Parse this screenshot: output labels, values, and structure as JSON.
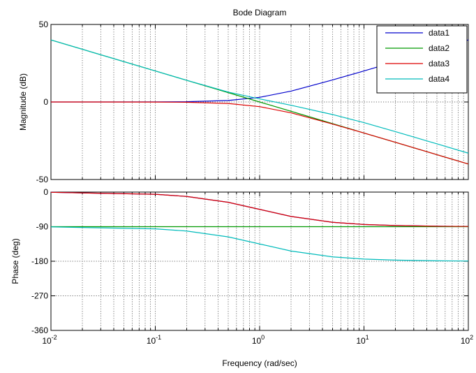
{
  "chart_data": {
    "type": "line",
    "title": "Bode Diagram",
    "xlabel": "Frequency  (rad/sec)",
    "x_scale": "log",
    "xlim": [
      0.01,
      100
    ],
    "x_ticks": [
      {
        "value": 0.01,
        "base": "10",
        "exp": "-2"
      },
      {
        "value": 0.1,
        "base": "10",
        "exp": "-1"
      },
      {
        "value": 1,
        "base": "10",
        "exp": "0"
      },
      {
        "value": 10,
        "base": "10",
        "exp": "1"
      },
      {
        "value": 100,
        "base": "10",
        "exp": "2"
      }
    ],
    "grid": true,
    "legend_position": "top-right",
    "colors": {
      "data1": "#0000cc",
      "data2": "#009900",
      "data3": "#dd0000",
      "data4": "#00bbbb"
    },
    "panels": [
      {
        "id": "magnitude",
        "ylabel": "Magnitude (dB)",
        "ylim": [
          -50,
          50
        ],
        "y_ticks": [
          50,
          0,
          -50
        ],
        "y_tick_labels": [
          "50",
          "0",
          "-50"
        ],
        "series": [
          {
            "name": "data1",
            "x": [
              0.01,
              0.1,
              0.2,
              0.5,
              1,
              2,
              5,
              10,
              20,
              50,
              100
            ],
            "y": [
              0,
              0.04,
              0.17,
              0.97,
              3.0,
              7.0,
              14.2,
              20.0,
              26.0,
              34.0,
              40.0
            ]
          },
          {
            "name": "data2",
            "x": [
              0.01,
              0.1,
              1,
              10,
              100
            ],
            "y": [
              40,
              20,
              0,
              -20,
              -40
            ]
          },
          {
            "name": "data3",
            "x": [
              0.01,
              0.1,
              0.2,
              0.5,
              1,
              2,
              5,
              10,
              20,
              50,
              100
            ],
            "y": [
              0,
              -0.04,
              -0.17,
              -0.97,
              -3.0,
              -7.0,
              -14.2,
              -20.0,
              -26.0,
              -34.0,
              -40.0
            ]
          },
          {
            "name": "data4",
            "x": [
              0.01,
              0.1,
              0.2,
              0.5,
              1,
              2,
              5,
              10,
              20,
              50,
              100
            ],
            "y": [
              40,
              20,
              14.0,
              6.4,
              2.0,
              -2.1,
              -8.1,
              -13.3,
              -19.1,
              -27.0,
              -33.0
            ]
          }
        ]
      },
      {
        "id": "phase",
        "ylabel": "Phase (deg)",
        "ylim": [
          -360,
          0
        ],
        "y_ticks": [
          0,
          -90,
          -180,
          -270,
          -360
        ],
        "y_tick_labels": [
          "0",
          "-90",
          "-180",
          "-270",
          "-360"
        ],
        "series": [
          {
            "name": "data1",
            "x": [
              0.01,
              0.1,
              0.2,
              0.5,
              1,
              2,
              5,
              10,
              20,
              50,
              100
            ],
            "y": [
              -0.6,
              -5.7,
              -11.3,
              -26.6,
              -45.0,
              -63.4,
              -78.7,
              -84.3,
              -87.1,
              -88.9,
              -89.4
            ]
          },
          {
            "name": "data2",
            "x": [
              0.01,
              100
            ],
            "y": [
              -90,
              -90
            ]
          },
          {
            "name": "data3",
            "x": [
              0.01,
              0.1,
              0.2,
              0.5,
              1,
              2,
              5,
              10,
              20,
              50,
              100
            ],
            "y": [
              -0.6,
              -5.7,
              -11.3,
              -26.6,
              -45.0,
              -63.4,
              -78.7,
              -84.3,
              -87.1,
              -88.9,
              -89.4
            ]
          },
          {
            "name": "data4",
            "x": [
              0.01,
              0.1,
              0.2,
              0.5,
              1,
              2,
              5,
              10,
              20,
              50,
              100
            ],
            "y": [
              -90.6,
              -95.7,
              -101.3,
              -116.6,
              -135.0,
              -153.4,
              -168.7,
              -174.3,
              -177.1,
              -178.9,
              -179.4
            ]
          }
        ]
      }
    ],
    "legend": [
      "data1",
      "data2",
      "data3",
      "data4"
    ]
  }
}
